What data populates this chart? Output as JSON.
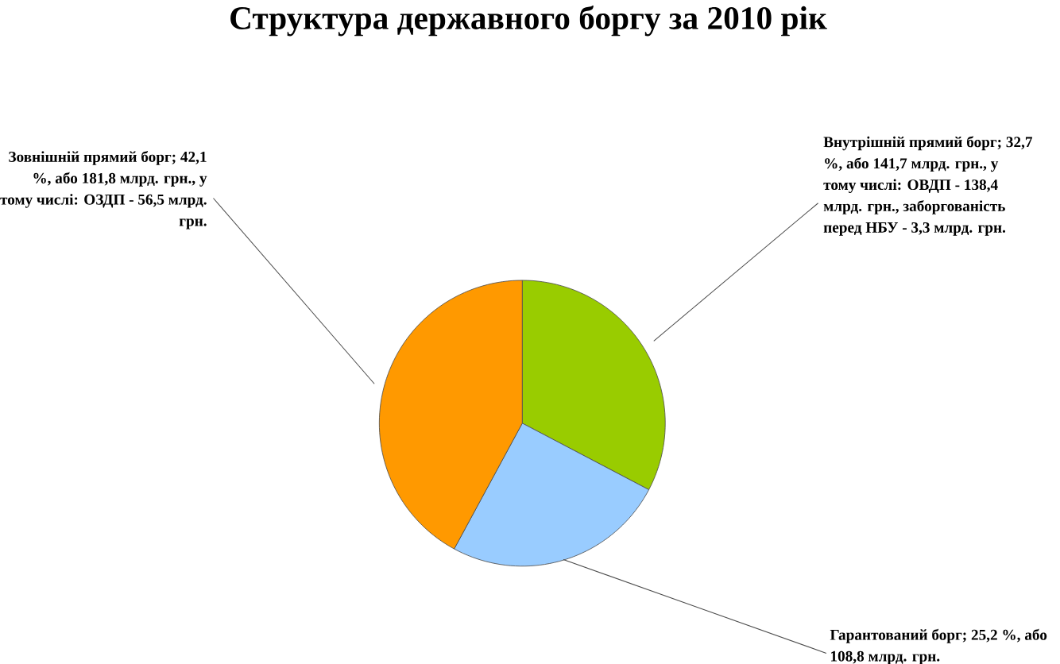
{
  "chart_data": {
    "type": "pie",
    "title": "Структура державного боргу за 2010 рік",
    "categories": [
      "Внутрішній прямий борг; 32,7 %, або 141,7 млрд. грн., у тому числі: ОВДП - 138,4 млрд. грн., заборгованість перед НБУ - 3,3 млрд. грн.",
      "Гарантований борг; 25,2 %, або 108,8 млрд. грн.",
      "Зовнішній прямий борг; 42,1 %, або 181,8 млрд. грн., у тому числі: ОЗДП - 56,5 млрд. грн."
    ],
    "values": [
      32.7,
      25.2,
      42.1
    ],
    "colors": [
      "#99cc00",
      "#99ccff",
      "#ff9900"
    ]
  }
}
